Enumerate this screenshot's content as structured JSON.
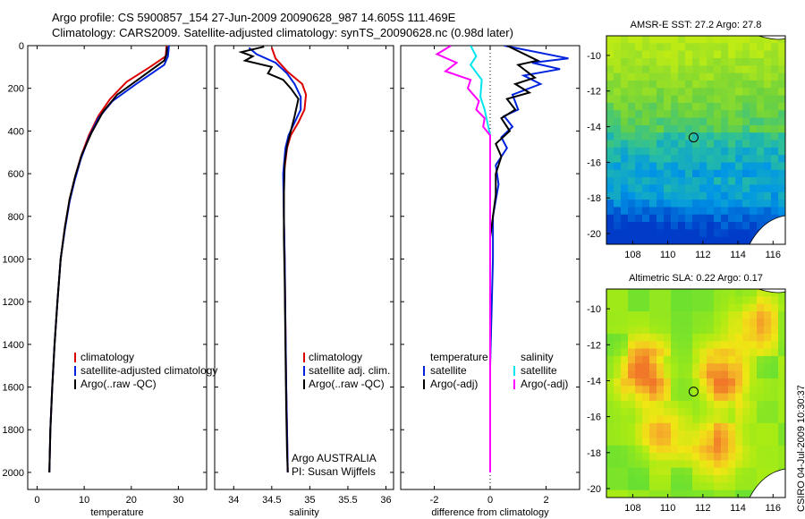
{
  "header": {
    "title_line1": "Argo profile: CS 5900857_154 27-Jun-2009 20090628_987 14.605S 111.469E",
    "title_line2": "Climatology: CARS2009. Satellite-adjusted climatology: synTS_20090628.nc (0.98d later)"
  },
  "credit": "CSIRO 04-Jul-2009 10:30:37",
  "colors": {
    "climatology": "#dd0000",
    "satellite": "#0022dd",
    "argo": "#000000",
    "sat_sal": "#00e5ee",
    "argo_sal": "#ff00ff"
  },
  "chart_data": [
    {
      "type": "line",
      "name": "temperature-profile",
      "xlabel": "temperature",
      "xlim": [
        -2,
        36
      ],
      "ylim": [
        0,
        2080
      ],
      "xticks": [
        0,
        10,
        20,
        30
      ],
      "yticks": [
        0,
        200,
        400,
        600,
        800,
        1000,
        1200,
        1400,
        1600,
        1800,
        2000
      ],
      "legend": [
        "climatology",
        "satellite-adjusted climatology",
        "Argo(..raw -QC)"
      ],
      "series": [
        {
          "name": "climatology",
          "color": "#dd0000",
          "points": [
            [
              27.5,
              0
            ],
            [
              27.3,
              50
            ],
            [
              24,
              100
            ],
            [
              19,
              170
            ],
            [
              15.5,
              250
            ],
            [
              13,
              330
            ],
            [
              11,
              420
            ],
            [
              9.3,
              520
            ],
            [
              8,
              620
            ],
            [
              6.9,
              720
            ],
            [
              5.9,
              850
            ],
            [
              5,
              1000
            ],
            [
              4.3,
              1200
            ],
            [
              3.7,
              1400
            ],
            [
              3.2,
              1600
            ],
            [
              2.8,
              1800
            ],
            [
              2.6,
              2000
            ]
          ]
        },
        {
          "name": "satellite-adjusted climatology",
          "color": "#0022dd",
          "points": [
            [
              28,
              0
            ],
            [
              27.8,
              50
            ],
            [
              27,
              90
            ],
            [
              21,
              180
            ],
            [
              16,
              260
            ],
            [
              13,
              340
            ],
            [
              11,
              430
            ],
            [
              9.3,
              530
            ],
            [
              8,
              630
            ],
            [
              6.9,
              730
            ],
            [
              5.9,
              860
            ],
            [
              5,
              1000
            ],
            [
              4.3,
              1200
            ],
            [
              3.7,
              1400
            ],
            [
              3.2,
              1600
            ],
            [
              2.8,
              1800
            ],
            [
              2.6,
              2000
            ]
          ]
        },
        {
          "name": "Argo(..raw -QC)",
          "color": "#000000",
          "points": [
            [
              27.6,
              5
            ],
            [
              27.5,
              40
            ],
            [
              27,
              70
            ],
            [
              22,
              150
            ],
            [
              17,
              230
            ],
            [
              14,
              310
            ],
            [
              11.5,
              410
            ],
            [
              9.5,
              510
            ],
            [
              8.1,
              610
            ],
            [
              6.9,
              720
            ],
            [
              5.9,
              850
            ],
            [
              5,
              1000
            ],
            [
              4.3,
              1200
            ],
            [
              3.7,
              1400
            ],
            [
              3.2,
              1600
            ],
            [
              2.8,
              1800
            ],
            [
              2.6,
              2000
            ]
          ]
        }
      ]
    },
    {
      "type": "line",
      "name": "salinity-profile",
      "xlabel": "salinity",
      "xlim": [
        33.75,
        36.1
      ],
      "ylim": [
        0,
        2080
      ],
      "xticks": [
        34,
        34.5,
        35,
        35.5,
        36
      ],
      "legend": [
        "climatology",
        "satellite adj. clim.",
        "Argo(..raw -QC)"
      ],
      "annotations": [
        "Argo AUSTRALIA",
        "PI: Susan Wijffels"
      ],
      "series": [
        {
          "name": "climatology",
          "color": "#dd0000",
          "points": [
            [
              34.5,
              10
            ],
            [
              34.55,
              60
            ],
            [
              34.7,
              120
            ],
            [
              34.9,
              180
            ],
            [
              34.95,
              230
            ],
            [
              34.93,
              300
            ],
            [
              34.85,
              360
            ],
            [
              34.75,
              420
            ],
            [
              34.7,
              480
            ],
            [
              34.66,
              600
            ],
            [
              34.66,
              800
            ],
            [
              34.67,
              1000
            ],
            [
              34.68,
              1300
            ],
            [
              34.69,
              1600
            ],
            [
              34.7,
              1800
            ],
            [
              34.71,
              2000
            ]
          ]
        },
        {
          "name": "satellite adj. clim.",
          "color": "#0022dd",
          "points": [
            [
              34.2,
              10
            ],
            [
              34.3,
              40
            ],
            [
              34.55,
              80
            ],
            [
              34.7,
              130
            ],
            [
              34.8,
              180
            ],
            [
              34.88,
              240
            ],
            [
              34.88,
              300
            ],
            [
              34.8,
              360
            ],
            [
              34.72,
              420
            ],
            [
              34.68,
              480
            ],
            [
              34.65,
              600
            ],
            [
              34.66,
              800
            ],
            [
              34.67,
              1000
            ],
            [
              34.68,
              1300
            ],
            [
              34.69,
              1600
            ],
            [
              34.7,
              1800
            ],
            [
              34.71,
              2000
            ]
          ]
        },
        {
          "name": "Argo(..raw -QC)",
          "color": "#000000",
          "points": [
            [
              34.4,
              5
            ],
            [
              34.1,
              30
            ],
            [
              34.25,
              50
            ],
            [
              34.15,
              70
            ],
            [
              34.5,
              100
            ],
            [
              34.45,
              130
            ],
            [
              34.65,
              160
            ],
            [
              34.75,
              200
            ],
            [
              34.85,
              250
            ],
            [
              34.8,
              330
            ],
            [
              34.75,
              400
            ],
            [
              34.7,
              470
            ],
            [
              34.67,
              550
            ],
            [
              34.66,
              700
            ],
            [
              34.66,
              900
            ],
            [
              34.67,
              1100
            ],
            [
              34.68,
              1400
            ],
            [
              34.69,
              1700
            ],
            [
              34.7,
              1900
            ],
            [
              34.71,
              2000
            ]
          ]
        }
      ]
    },
    {
      "type": "line",
      "name": "difference-profile",
      "xlabel": "difference from climatology",
      "xlim": [
        -3.2,
        3.2
      ],
      "ylim": [
        0,
        2080
      ],
      "xticks": [
        -2,
        0,
        2
      ],
      "legend_temperature": [
        "temperature",
        "satellite",
        "Argo(-adj)"
      ],
      "legend_salinity": [
        "salinity",
        "satellite",
        "Argo(-adj)"
      ],
      "series": [
        {
          "name": "temperature satellite",
          "color": "#0022dd",
          "points": [
            [
              0.5,
              0
            ],
            [
              2.8,
              60
            ],
            [
              1.5,
              80
            ],
            [
              2.5,
              110
            ],
            [
              1.2,
              140
            ],
            [
              1.8,
              180
            ],
            [
              0.8,
              230
            ],
            [
              1,
              300
            ],
            [
              0.5,
              330
            ],
            [
              0.8,
              380
            ],
            [
              0.4,
              430
            ],
            [
              0.6,
              480
            ],
            [
              0.2,
              560
            ],
            [
              0.3,
              650
            ],
            [
              0.1,
              800
            ],
            [
              0.1,
              1000
            ],
            [
              0,
              1500
            ],
            [
              0,
              2000
            ]
          ]
        },
        {
          "name": "temperature Argo(-adj)",
          "color": "#000000",
          "points": [
            [
              0.6,
              0
            ],
            [
              1.7,
              70
            ],
            [
              1,
              90
            ],
            [
              1.6,
              150
            ],
            [
              0.9,
              180
            ],
            [
              1.4,
              220
            ],
            [
              0.6,
              250
            ],
            [
              0.9,
              300
            ],
            [
              0.4,
              340
            ],
            [
              0.7,
              400
            ],
            [
              0.2,
              460
            ],
            [
              0.4,
              520
            ],
            [
              0.2,
              600
            ],
            [
              0.2,
              700
            ],
            [
              0,
              900
            ],
            [
              0,
              1500
            ],
            [
              0,
              2000
            ]
          ]
        },
        {
          "name": "salinity satellite",
          "color": "#00e5ee",
          "points": [
            [
              -0.7,
              0
            ],
            [
              -0.5,
              50
            ],
            [
              -0.7,
              90
            ],
            [
              -0.3,
              160
            ],
            [
              -0.35,
              240
            ],
            [
              -0.2,
              300
            ],
            [
              -0.1,
              360
            ],
            [
              0,
              420
            ],
            [
              0,
              600
            ],
            [
              0,
              1000
            ],
            [
              0,
              1500
            ],
            [
              0,
              2000
            ]
          ]
        },
        {
          "name": "salinity Argo(-adj)",
          "color": "#ff00ff",
          "points": [
            [
              -1.4,
              0
            ],
            [
              -1.9,
              40
            ],
            [
              -1.2,
              80
            ],
            [
              -1.6,
              120
            ],
            [
              -0.7,
              160
            ],
            [
              -0.8,
              200
            ],
            [
              -0.4,
              260
            ],
            [
              -0.5,
              300
            ],
            [
              -0.2,
              340
            ],
            [
              -0.25,
              380
            ],
            [
              0,
              420
            ],
            [
              0,
              600
            ],
            [
              0,
              1000
            ],
            [
              0,
              1500
            ],
            [
              0,
              2000
            ]
          ]
        }
      ]
    },
    {
      "type": "heatmap",
      "name": "sst-map",
      "title": "AMSR-E SST: 27.2 Argo: 27.8",
      "xlim": [
        106.5,
        116.7
      ],
      "ylim": [
        -20.6,
        -8.9
      ],
      "xticks": [
        108,
        110,
        112,
        114,
        116
      ],
      "yticks": [
        -10,
        -12,
        -14,
        -16,
        -18,
        -20
      ],
      "argo_position": [
        111.469,
        -14.605
      ]
    },
    {
      "type": "heatmap",
      "name": "sla-map",
      "title": "Altimetric SLA: 0.22 Argo: 0.17",
      "xlim": [
        106.5,
        116.7
      ],
      "ylim": [
        -20.5,
        -8.9
      ],
      "xticks": [
        108,
        110,
        112,
        114,
        116
      ],
      "yticks": [
        -10,
        -12,
        -14,
        -16,
        -18,
        -20
      ],
      "argo_position": [
        111.469,
        -14.605
      ]
    }
  ]
}
